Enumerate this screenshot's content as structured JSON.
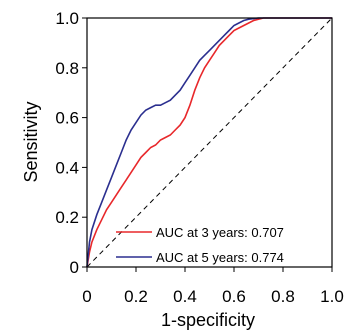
{
  "chart_data": {
    "type": "line",
    "title": "",
    "xlabel": "1-specificity",
    "ylabel": "Sensitivity",
    "xlim": [
      0,
      1
    ],
    "ylim": [
      0,
      1
    ],
    "x_ticks": [
      "0",
      "0.2",
      "0.4",
      "0.6",
      "0.8",
      "1.0"
    ],
    "y_ticks": [
      "0",
      "0.2",
      "0.4",
      "0.6",
      "0.8",
      "1.0"
    ],
    "grid": false,
    "legend_position": "bottom-right",
    "reference_line": {
      "style": "dashed",
      "from": [
        0,
        0
      ],
      "to": [
        1,
        1
      ],
      "color": "#000000"
    },
    "series": [
      {
        "name": "AUC at 3 years: 0.707",
        "color": "#e8282b",
        "x": [
          0,
          0.01,
          0.02,
          0.04,
          0.06,
          0.08,
          0.1,
          0.12,
          0.14,
          0.16,
          0.18,
          0.2,
          0.22,
          0.24,
          0.26,
          0.28,
          0.3,
          0.32,
          0.34,
          0.36,
          0.38,
          0.4,
          0.42,
          0.44,
          0.46,
          0.48,
          0.5,
          0.52,
          0.54,
          0.56,
          0.58,
          0.6,
          0.62,
          0.64,
          0.66,
          0.68,
          0.7,
          0.72,
          0.75,
          1.0
        ],
        "y": [
          0,
          0.06,
          0.1,
          0.15,
          0.19,
          0.23,
          0.26,
          0.29,
          0.32,
          0.35,
          0.38,
          0.41,
          0.44,
          0.46,
          0.48,
          0.49,
          0.51,
          0.52,
          0.53,
          0.55,
          0.57,
          0.6,
          0.65,
          0.71,
          0.76,
          0.8,
          0.83,
          0.86,
          0.89,
          0.91,
          0.93,
          0.95,
          0.96,
          0.97,
          0.98,
          0.99,
          0.995,
          1.0,
          1.0,
          1.0
        ]
      },
      {
        "name": "AUC at 5 years: 0.774",
        "color": "#2b2f8f",
        "x": [
          0,
          0.01,
          0.02,
          0.04,
          0.06,
          0.08,
          0.1,
          0.12,
          0.14,
          0.16,
          0.18,
          0.2,
          0.22,
          0.24,
          0.26,
          0.28,
          0.3,
          0.32,
          0.34,
          0.36,
          0.38,
          0.4,
          0.42,
          0.44,
          0.46,
          0.48,
          0.5,
          0.52,
          0.54,
          0.56,
          0.58,
          0.6,
          0.62,
          0.64,
          0.66,
          0.7,
          0.75,
          1.0
        ],
        "y": [
          0,
          0.1,
          0.15,
          0.21,
          0.26,
          0.31,
          0.36,
          0.41,
          0.46,
          0.51,
          0.55,
          0.58,
          0.61,
          0.63,
          0.64,
          0.65,
          0.65,
          0.66,
          0.67,
          0.69,
          0.71,
          0.74,
          0.77,
          0.8,
          0.83,
          0.85,
          0.87,
          0.89,
          0.91,
          0.93,
          0.95,
          0.97,
          0.98,
          0.99,
          0.995,
          1.0,
          1.0,
          1.0
        ]
      }
    ]
  }
}
